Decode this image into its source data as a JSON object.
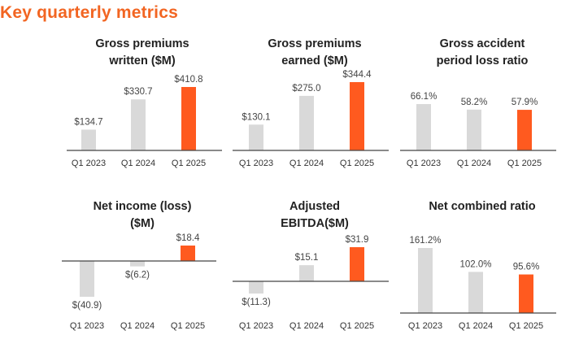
{
  "page": {
    "title": "Key quarterly metrics"
  },
  "colors": {
    "accent": "#ff5a1f",
    "bar": "#d9d9d9",
    "baseline": "#444444",
    "title": "#f26522"
  },
  "chart_data": [
    {
      "type": "bar",
      "title_lines": [
        "Gross premiums",
        "written ($M)"
      ],
      "categories": [
        "Q1 2023",
        "Q1 2024",
        "Q1 2025"
      ],
      "values": [
        134.7,
        330.7,
        410.8
      ],
      "labels": [
        "$134.7",
        "$330.7",
        "$410.8"
      ],
      "ylim": [
        0,
        410.8
      ],
      "highlight_index": 2
    },
    {
      "type": "bar",
      "title_lines": [
        "Gross premiums",
        "earned ($M)"
      ],
      "categories": [
        "Q1 2023",
        "Q1 2024",
        "Q1 2025"
      ],
      "values": [
        130.1,
        275.0,
        344.4
      ],
      "labels": [
        "$130.1",
        "$275.0",
        "$344.4"
      ],
      "ylim": [
        0,
        344.4
      ],
      "highlight_index": 2
    },
    {
      "type": "bar",
      "title_lines": [
        "Gross accident",
        "period loss ratio"
      ],
      "categories": [
        "Q1 2023",
        "Q1 2024",
        "Q1 2025"
      ],
      "values": [
        66.1,
        58.2,
        57.9
      ],
      "labels": [
        "66.1%",
        "58.2%",
        "57.9%"
      ],
      "ylim": [
        0,
        66.1
      ],
      "highlight_index": 2
    },
    {
      "type": "bar",
      "title_lines": [
        "Net income (loss)",
        "($M)"
      ],
      "categories": [
        "Q1 2023",
        "Q1 2024",
        "Q1 2025"
      ],
      "values": [
        -40.9,
        -6.2,
        18.4
      ],
      "labels": [
        "$(40.9)",
        "$(6.2)",
        "$18.4"
      ],
      "ylim": [
        -40.9,
        18.4
      ],
      "highlight_index": 2
    },
    {
      "type": "bar",
      "title_lines": [
        "Adjusted",
        "EBITDA($M)"
      ],
      "categories": [
        "Q1 2023",
        "Q1 2024",
        "Q1 2025"
      ],
      "values": [
        -11.3,
        15.1,
        31.9
      ],
      "labels": [
        "$(11.3)",
        "$15.1",
        "$31.9"
      ],
      "ylim": [
        -11.3,
        31.9
      ],
      "highlight_index": 2
    },
    {
      "type": "bar",
      "title_lines": [
        "Net combined ratio"
      ],
      "categories": [
        "Q1 2023",
        "Q1 2024",
        "Q1 2025"
      ],
      "values": [
        161.2,
        102.0,
        95.6
      ],
      "labels": [
        "161.2%",
        "102.0%",
        "95.6%"
      ],
      "ylim": [
        0,
        161.2
      ],
      "highlight_index": 2
    }
  ]
}
